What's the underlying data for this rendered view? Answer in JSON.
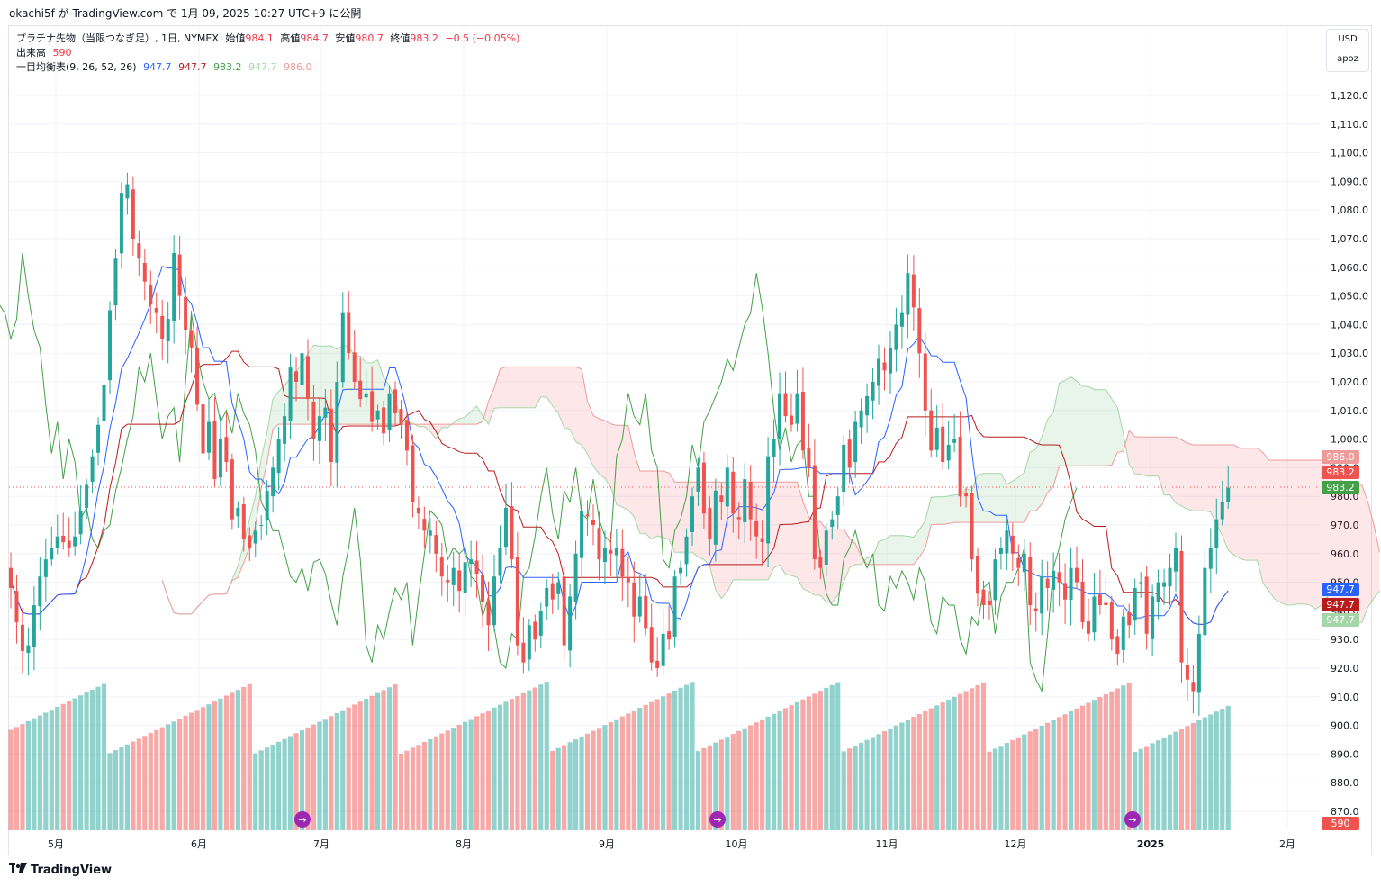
{
  "header": {
    "publish_line": "okachi5f が TradingView.com で 1月 09, 2025 10:27 UTC+9 に公開"
  },
  "legend": {
    "title": "プラチナ先物（当限つなぎ足）, 1日, NYMEX",
    "open_label": "始値",
    "open": "984.1",
    "high_label": "高値",
    "high": "984.7",
    "low_label": "安値",
    "low": "980.7",
    "close_label": "終値",
    "close": "983.2",
    "change": "−0.5 (−0.05%)",
    "volume_label": "出来高",
    "volume": "590",
    "ichimoku_label": "一目均衡表",
    "ichimoku_params": "(9, 26, 52, 26)",
    "tenkan": "947.7",
    "kijun": "947.7",
    "chikou": "983.2",
    "senkou_a": "947.7",
    "senkou_b": "986.0"
  },
  "currency": {
    "code": "USD",
    "scale": "apoz"
  },
  "footer": {
    "brand": "TradingView"
  },
  "colors": {
    "up": "#26a69a",
    "down": "#ef5350",
    "tenkan": "#2962ff",
    "kijun": "#b71c1c",
    "chikou": "#43a047",
    "span_a": "#a5d6a7",
    "span_b": "#ef9a9a"
  },
  "chart_data": {
    "type": "candlestick",
    "y_ticks": [
      "1,120.0",
      "1,110.0",
      "1,100.0",
      "1,090.0",
      "1,080.0",
      "1,070.0",
      "1,060.0",
      "1,050.0",
      "1,040.0",
      "1,030.0",
      "1,020.0",
      "1,010.0",
      "1,000.0",
      "990.0",
      "980.0",
      "970.0",
      "960.0",
      "950.0",
      "940.0",
      "930.0",
      "920.0",
      "910.0",
      "900.0",
      "890.0",
      "880.0",
      "870.0"
    ],
    "x_ticks": [
      "5月",
      "6月",
      "7月",
      "8月",
      "9月",
      "10月",
      "11月",
      "12月",
      "2025",
      "2月"
    ],
    "ylim": [
      865,
      1125
    ],
    "price_badges": [
      {
        "label": "986.0",
        "value": 986.0,
        "color": "#ef9a9a"
      },
      {
        "label": "983.2",
        "value": 983.2,
        "color": "#ef5350"
      },
      {
        "label": "983.2",
        "value": 983.2,
        "color": "#43a047"
      },
      {
        "label": "947.7",
        "value": 947.7,
        "color": "#2962ff"
      },
      {
        "label": "947.7",
        "value": 947.7,
        "color": "#b71c1c"
      },
      {
        "label": "947.7",
        "value": 947.7,
        "color": "#a5d6a7"
      },
      {
        "label": "590",
        "value": 590,
        "color": "#ef5350"
      }
    ],
    "last_close": 983.2,
    "close": [
      948,
      936,
      926,
      928,
      942,
      952,
      958,
      962,
      966,
      964,
      962,
      966,
      975,
      984,
      994,
      1005,
      1019,
      1045,
      1063,
      1086,
      1089,
      1070,
      1063,
      1055,
      1047,
      1044,
      1035,
      1042,
      1065,
      1050,
      1038,
      1032,
      1012,
      995,
      1006,
      986,
      1000,
      992,
      972,
      976,
      965,
      962,
      968,
      970,
      982,
      990,
      1000,
      1008,
      1025,
      1020,
      1030,
      1014,
      1000,
      1008,
      1011,
      992,
      1020,
      1044,
      1030,
      1020,
      1014,
      1016,
      1006,
      1010,
      1002,
      1016,
      1009,
      1005,
      996,
      978,
      974,
      968,
      968,
      960,
      952,
      950,
      955,
      947,
      957,
      958,
      953,
      943,
      935,
      952,
      962,
      976,
      958,
      928,
      922,
      935,
      930,
      940,
      948,
      944,
      950,
      928,
      945,
      960,
      975,
      973,
      970,
      958,
      962,
      960,
      962,
      952,
      950,
      938,
      945,
      934,
      922,
      920,
      932,
      930,
      952,
      955,
      966,
      980,
      990,
      974,
      965,
      982,
      978,
      990,
      974,
      972,
      986,
      972,
      966,
      964,
      994,
      1000,
      1016,
      1008,
      1005,
      1016,
      996,
      990,
      958,
      955,
      968,
      972,
      980,
      998,
      990,
      1006,
      1010,
      1015,
      1020,
      1028,
      1024,
      1032,
      1040,
      1044,
      1058,
      1046,
      1030,
      1010,
      996,
      1004,
      992,
      998,
      1000,
      980,
      980,
      958,
      946,
      942,
      942,
      958,
      962,
      968,
      960,
      955,
      960,
      942,
      940,
      952,
      948,
      954,
      950,
      944,
      955,
      950,
      936,
      932,
      945,
      942,
      942,
      930,
      925,
      938,
      935,
      948,
      950,
      932,
      945,
      950,
      950,
      955,
      962,
      922,
      916,
      912,
      932,
      955,
      962,
      972,
      978,
      983
    ]
  }
}
